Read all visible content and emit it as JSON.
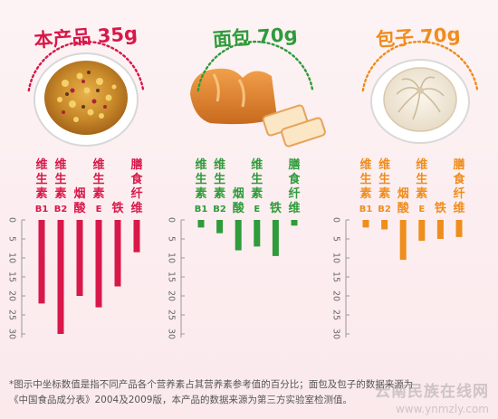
{
  "colors": {
    "product": "#d8184a",
    "bread": "#2f9b3a",
    "bun": "#ef8d1d",
    "tick": "#666666",
    "axis": "#999999"
  },
  "chart_data": [
    {
      "type": "bar",
      "title": "本产品 35g",
      "color": "#d8184a",
      "categories": [
        "维生素B1",
        "维生素B2",
        "烟酸",
        "维生素E",
        "铁",
        "膳食纤维"
      ],
      "category_lines": [
        [
          "维",
          "生",
          "素",
          "B1"
        ],
        [
          "维",
          "生",
          "素",
          "B2"
        ],
        [
          "烟",
          "酸"
        ],
        [
          "维",
          "生",
          "素",
          "E"
        ],
        [
          "铁"
        ],
        [
          "膳",
          "食",
          "纤",
          "维"
        ]
      ],
      "values": [
        22,
        30,
        20,
        23,
        17.5,
        8.5
      ],
      "y_ticks": [
        "0",
        "5",
        "10",
        "15",
        "20",
        "25",
        "30"
      ],
      "ylim": [
        0,
        30
      ]
    },
    {
      "type": "bar",
      "title": "面包 70g",
      "color": "#2f9b3a",
      "categories": [
        "维生素B1",
        "维生素B2",
        "烟酸",
        "维生素E",
        "铁",
        "膳食纤维"
      ],
      "category_lines": [
        [
          "维",
          "生",
          "素",
          "B1"
        ],
        [
          "维",
          "生",
          "素",
          "B2"
        ],
        [
          "烟",
          "酸"
        ],
        [
          "维",
          "生",
          "素",
          "E"
        ],
        [
          "铁"
        ],
        [
          "膳",
          "食",
          "纤",
          "维"
        ]
      ],
      "values": [
        2,
        3.5,
        8,
        7,
        9.5,
        1.5
      ],
      "y_ticks": [
        "0",
        "5",
        "10",
        "15",
        "20",
        "25",
        "30"
      ],
      "ylim": [
        0,
        30
      ]
    },
    {
      "type": "bar",
      "title": "包子 70g",
      "color": "#ef8d1d",
      "categories": [
        "维生素B1",
        "维生素B2",
        "烟酸",
        "维生素E",
        "铁",
        "膳食纤维"
      ],
      "category_lines": [
        [
          "维",
          "生",
          "素",
          "B1"
        ],
        [
          "维",
          "生",
          "素",
          "B2"
        ],
        [
          "烟",
          "酸"
        ],
        [
          "维",
          "生",
          "素",
          "E"
        ],
        [
          "铁"
        ],
        [
          "膳",
          "食",
          "纤",
          "维"
        ]
      ],
      "values": [
        2,
        2.5,
        10.5,
        5.5,
        5,
        4.5
      ],
      "y_ticks": [
        "0",
        "5",
        "10",
        "15",
        "20",
        "25",
        "30"
      ],
      "ylim": [
        0,
        30
      ]
    }
  ],
  "images": [
    "cereal-bowl-icon",
    "bread-loaf-icon",
    "steamed-bun-icon"
  ],
  "footnote": {
    "line1": "*图示中坐标数值是指不同产品各个营养素占其营养素参考值的百分比；面包及包子的数据来源为",
    "line2": "《中国食品成分表》2004及2009版，本产品的数据来源为第三方实验室检测值。"
  },
  "watermark": {
    "line1": "云南民族在线网",
    "line2": "www.ynmzly.com"
  }
}
